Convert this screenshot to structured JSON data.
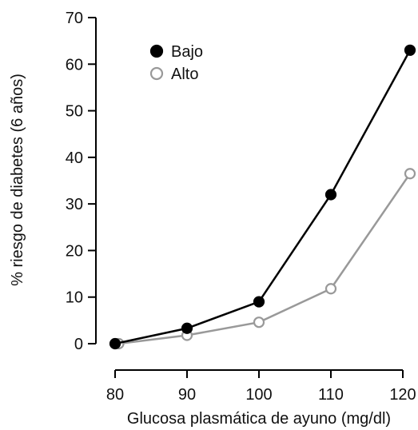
{
  "chart_data": {
    "type": "line",
    "title": "",
    "xlabel": "Glucosa plasmática de ayuno (mg/dl)",
    "ylabel": "% riesgo de diabetes (6 años)",
    "xlim": [
      80,
      121
    ],
    "ylim": [
      0,
      70
    ],
    "x_ticks": [
      80,
      90,
      100,
      110,
      120
    ],
    "y_ticks": [
      0,
      10,
      20,
      30,
      40,
      50,
      60,
      70
    ],
    "grid": false,
    "legend_position": "top-left",
    "series": [
      {
        "name": "Bajo",
        "color": "#000000",
        "marker": "filled-circle",
        "points": [
          [
            80,
            0
          ],
          [
            90,
            3.3
          ],
          [
            100,
            9
          ],
          [
            110,
            32
          ],
          [
            121,
            63
          ]
        ]
      },
      {
        "name": "Alto",
        "color": "#999999",
        "marker": "open-circle",
        "points": [
          [
            80.5,
            0
          ],
          [
            90,
            1.8
          ],
          [
            100,
            4.6
          ],
          [
            110,
            11.8
          ],
          [
            121,
            36.5
          ]
        ]
      }
    ]
  }
}
